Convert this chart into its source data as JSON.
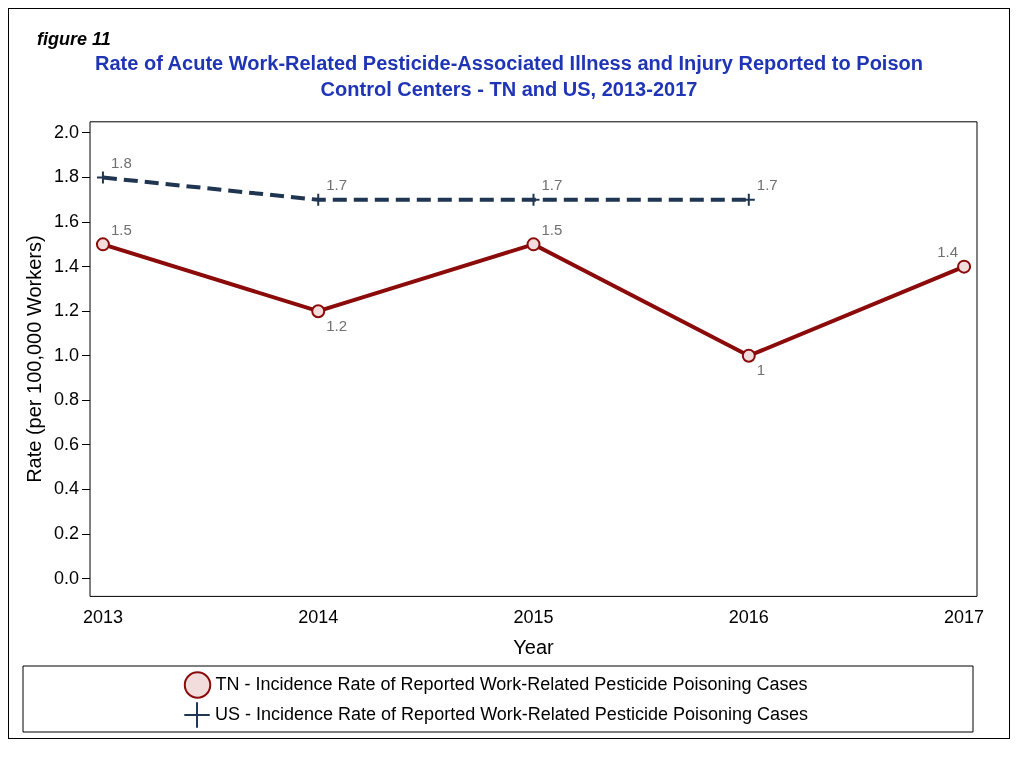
{
  "chart_data": {
    "type": "line",
    "title": "Rate of Acute Work-Related Pesticide-Associated Illness and Injury Reported to Poison Control Centers - TN and US, 2013-2017",
    "annotations": [
      "figure 11"
    ],
    "xlabel": "Year",
    "ylabel": "Rate (per 100,000 Workers)",
    "categories": [
      "2013",
      "2014",
      "2015",
      "2016",
      "2017"
    ],
    "series": [
      {
        "name": "TN - Incidence Rate of Reported Work-Related Pesticide Poisoning Cases",
        "color": "#8b0a0a",
        "values": [
          1.5,
          1.2,
          1.5,
          1,
          1.4
        ],
        "marker": "circle",
        "line_style": "solid"
      },
      {
        "name": "US - Incidence Rate of Reported Work-Related Pesticide Poisoning Cases",
        "color": "#1f3552",
        "values": [
          1.8,
          1.7,
          1.7,
          1.7,
          null
        ],
        "marker": "cross",
        "line_style": "dashed"
      }
    ],
    "ylim": [
      -0.08,
      2.05
    ],
    "yticks": [
      {
        "value": 0,
        "label": "0.0"
      },
      {
        "value": 0.2,
        "label": "0.2"
      },
      {
        "value": 0.4,
        "label": "0.4"
      },
      {
        "value": 0.6,
        "label": "0.6"
      },
      {
        "value": 0.8,
        "label": "0.8"
      },
      {
        "value": 1,
        "label": "1.0"
      },
      {
        "value": 1.2,
        "label": "1.2"
      },
      {
        "value": 1.4,
        "label": "1.4"
      },
      {
        "value": 1.6,
        "label": "1.6"
      },
      {
        "value": 1.8,
        "label": "1.8"
      },
      {
        "value": 2,
        "label": "2.0"
      }
    ],
    "grid": false,
    "legend": "bottom",
    "data_labels": true
  }
}
